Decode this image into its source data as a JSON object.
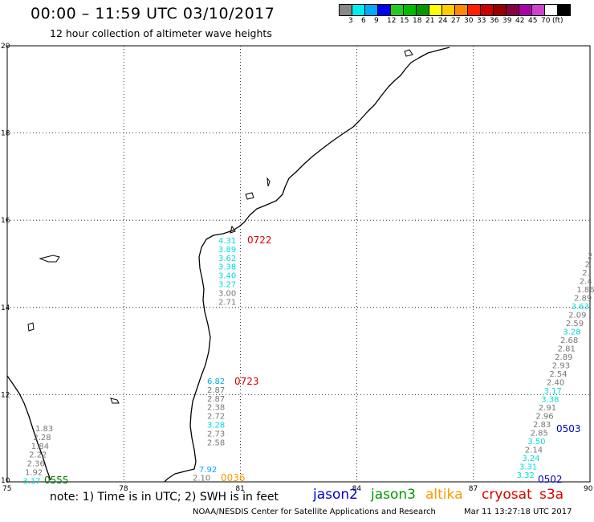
{
  "header": {
    "title": "00:00 – 11:59 UTC 03/10/2017",
    "subtitle": "12 hour collection of altimeter wave heights"
  },
  "colorbar": {
    "colors": [
      "#888888",
      "#00eeee",
      "#00aaff",
      "#0000ee",
      "#22cc22",
      "#00bb00",
      "#009900",
      "#ffff00",
      "#ffcc00",
      "#ff8800",
      "#ff2200",
      "#cc0000",
      "#990000",
      "#880044",
      "#aa00aa",
      "#cc44cc",
      "#ffffff",
      "#000000"
    ],
    "labels": [
      "3",
      "6",
      "9",
      "12",
      "15",
      "18",
      "21",
      "24",
      "27",
      "30",
      "33",
      "36",
      "39",
      "42",
      "45",
      "70",
      "(ft)"
    ]
  },
  "map": {
    "lon_range": [
      75,
      90
    ],
    "lat_range": [
      10,
      20
    ],
    "lon_ticks": [
      "75",
      "78",
      "81",
      "84",
      "87",
      "90"
    ],
    "lat_ticks": [
      "20",
      "18",
      "16",
      "14",
      "12",
      "10"
    ],
    "tracks": [
      {
        "satellite": "jason2",
        "time": "0722",
        "time_color": "#dd0000",
        "label_lon": 80.1,
        "label_lat": 15.5,
        "values": [
          "4.31",
          "3.89",
          "3.62",
          "3.38",
          "3.40",
          "3.27",
          "3.00",
          "2.71"
        ],
        "colors": [
          "#00dddd",
          "#00dddd",
          "#00dddd",
          "#00dddd",
          "#00dddd",
          "#00dddd",
          "#777777",
          "#777777"
        ]
      },
      {
        "satellite": "jason2",
        "time": "0723",
        "time_color": "#dd0000",
        "label_lon": 80.0,
        "label_lat": 12.1,
        "values": [
          "6.82",
          "2.87",
          "2.87",
          "2.38",
          "2.72",
          "3.28",
          "2.73",
          "2.58"
        ],
        "colors": [
          "#00aaff",
          "#777777",
          "#777777",
          "#777777",
          "#777777",
          "#00dddd",
          "#777777",
          "#777777"
        ]
      },
      {
        "satellite": "altika",
        "time": "0036",
        "time_color": "#ff9900",
        "label_lon": 79.5,
        "label_lat": 10.4,
        "values": [
          "7.92",
          "2.10"
        ],
        "colors": [
          "#00aaff",
          "#777777"
        ]
      },
      {
        "satellite": "jason3",
        "time": "0555",
        "time_color": "#007700",
        "label_lon": 75.4,
        "label_lat": 11.2,
        "values": [
          "1.83",
          "2.28",
          "1.84",
          "2.22",
          "2.36",
          "1.92",
          "3.17"
        ],
        "colors": [
          "#777777",
          "#777777",
          "#777777",
          "#777777",
          "#777777",
          "#777777",
          "#00dddd"
        ]
      },
      {
        "satellite": "jason2",
        "time": "0503",
        "time_color": "#0000cc",
        "label_lon": 87.0,
        "label_lat": 14.9,
        "values": [
          "2",
          "2",
          "2.",
          "2.4",
          "1.86",
          "2.89",
          "3.63",
          "2.09",
          "2.59",
          "3.28",
          "2.68",
          "2.81",
          "2.89",
          "2.93",
          "2.54",
          "2.40",
          "3.17",
          "3.38",
          "2.91",
          "2.96",
          "2.83",
          "2.85",
          "3.50",
          "2.14",
          "3.24",
          "3.31",
          "3.32"
        ],
        "colors": [
          "#777777",
          "#777777",
          "#777777",
          "#777777",
          "#777777",
          "#777777",
          "#00dddd",
          "#777777",
          "#777777",
          "#00dddd",
          "#777777",
          "#777777",
          "#777777",
          "#777777",
          "#777777",
          "#777777",
          "#00dddd",
          "#00dddd",
          "#777777",
          "#777777",
          "#777777",
          "#777777",
          "#00dddd",
          "#777777",
          "#00dddd",
          "#00dddd",
          "#00dddd"
        ]
      },
      {
        "satellite": "jason2",
        "time": "0502",
        "time_color": "#0000cc",
        "label_lon": 87.5,
        "label_lat": 10.15,
        "values": [],
        "colors": []
      }
    ]
  },
  "footer": {
    "note": "note: 1) Time is in UTC; 2) SWH is in feet",
    "satellites": [
      {
        "name": "jason2",
        "color": "#0000cc"
      },
      {
        "name": "jason3",
        "color": "#009900"
      },
      {
        "name": "altika",
        "color": "#ff9900"
      },
      {
        "name": "cryosat",
        "color": "#dd0000"
      },
      {
        "name": "s3a",
        "color": "#dd0000"
      }
    ],
    "credit": "NOAA/NESDIS Center for Satellite Applications and Research",
    "timestamp": "Mar 11 13:27:18 UTC 2017"
  }
}
